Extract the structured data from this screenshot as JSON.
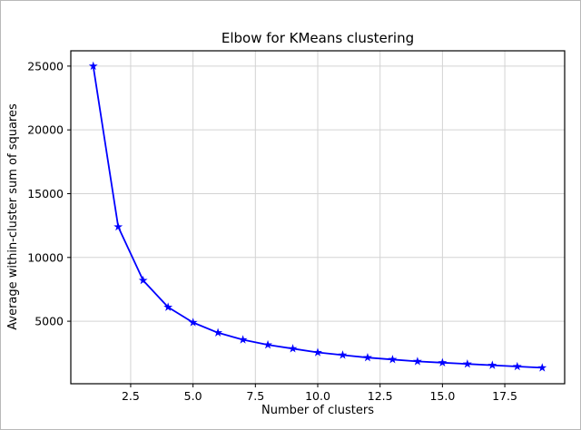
{
  "chart_data": {
    "type": "line",
    "title": "Elbow for KMeans clustering",
    "xlabel": "Number of clusters",
    "ylabel": "Average within-cluster sum of squares",
    "x": [
      1,
      2,
      3,
      4,
      5,
      6,
      7,
      8,
      9,
      10,
      11,
      12,
      13,
      14,
      15,
      16,
      17,
      18,
      19
    ],
    "y": [
      25000,
      12400,
      8200,
      6100,
      4900,
      4100,
      3550,
      3150,
      2850,
      2550,
      2350,
      2150,
      2000,
      1850,
      1750,
      1650,
      1550,
      1450,
      1350
    ],
    "x_ticks": [
      2.5,
      5.0,
      7.5,
      10.0,
      12.5,
      15.0,
      17.5
    ],
    "x_tick_labels": [
      "2.5",
      "5.0",
      "7.5",
      "10.0",
      "12.5",
      "15.0",
      "17.5"
    ],
    "y_ticks": [
      5000,
      10000,
      15000,
      20000,
      25000
    ],
    "y_tick_labels": [
      "5000",
      "10000",
      "15000",
      "20000",
      "25000"
    ],
    "xlim": [
      0.1,
      19.9
    ],
    "ylim": [
      100,
      26200
    ],
    "grid": true,
    "legend": "none",
    "line_color": "#0000ff",
    "marker": "star",
    "grid_color": "#d3d3d3",
    "frame_color": "#000000",
    "background_color": "#ffffff"
  }
}
